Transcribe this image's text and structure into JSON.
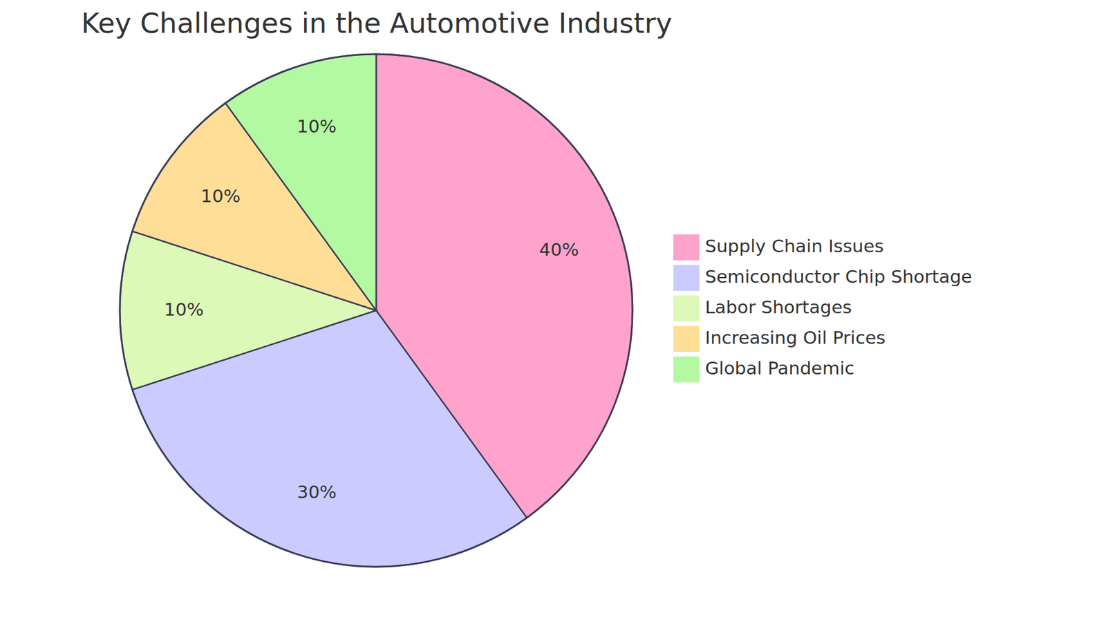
{
  "chart_data": {
    "type": "pie",
    "title": "Key Challenges in the Automotive Industry",
    "categories": [
      "Supply Chain Issues",
      "Semiconductor Chip Shortage",
      "Labor Shortages",
      "Increasing Oil Prices",
      "Global Pandemic"
    ],
    "values": [
      40,
      30,
      10,
      10,
      10
    ],
    "value_labels": [
      "40%",
      "30%",
      "10%",
      "10%",
      "10%"
    ],
    "colors": [
      "#ffa3cd",
      "#cbcbff",
      "#dcf9b7",
      "#ffde97",
      "#b3f9a1"
    ],
    "data_labels": true,
    "legend": "right"
  }
}
